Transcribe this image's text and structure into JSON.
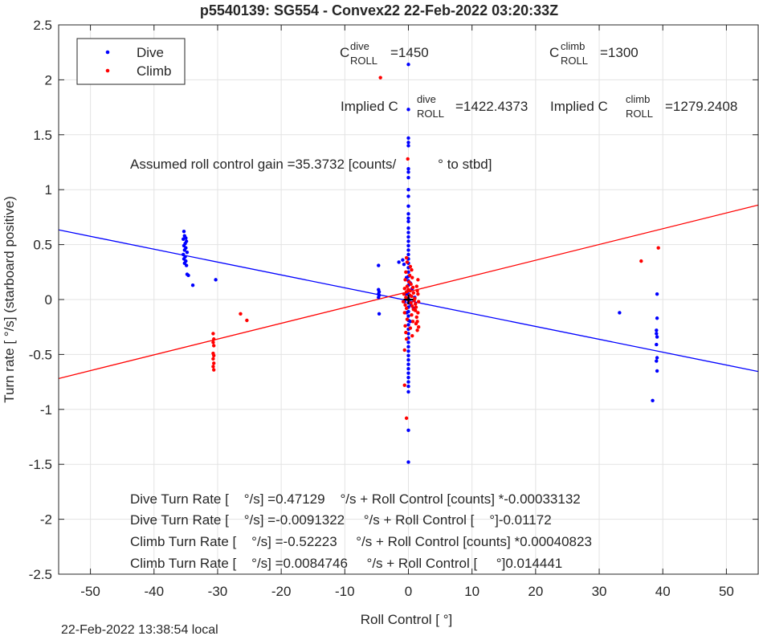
{
  "chart_data": {
    "type": "scatter",
    "title": "p5540139: SG554 - Convex22 22-Feb-2022 03:20:33Z",
    "xlabel": "Roll Control [   °]",
    "ylabel": "Turn rate [   °/s] (starboard positive)",
    "xlim": [
      -55,
      55
    ],
    "ylim": [
      -2.5,
      2.5
    ],
    "xticks": [
      -50,
      -40,
      -30,
      -20,
      -10,
      0,
      10,
      20,
      30,
      40,
      50
    ],
    "yticks": [
      -2.5,
      -2,
      -1.5,
      -1,
      -0.5,
      0,
      0.5,
      1,
      1.5,
      2,
      2.5
    ],
    "grid": true,
    "legend_position": "top-left",
    "timestamp": "22-Feb-2022 13:38:54 local",
    "colors": {
      "dive": "#0000ff",
      "climb": "#ff0000",
      "zero": "#000000"
    },
    "legend": [
      {
        "label": "Dive",
        "color": "#0000ff"
      },
      {
        "label": "Climb",
        "color": "#ff0000"
      }
    ],
    "annotations": {
      "c_dive": {
        "prefix": "C",
        "sup": "dive",
        "sub": "ROLL",
        "value": "=1450"
      },
      "c_climb": {
        "prefix": "C",
        "sup": "climb",
        "sub": "ROLL",
        "value": "=1300"
      },
      "implied_dive": {
        "prefix": "Implied C",
        "sup": "dive",
        "sub": "ROLL",
        "value": "=1422.4373"
      },
      "implied_climb": {
        "prefix": "Implied C",
        "sup": "climb",
        "sub": "ROLL",
        "value": "=1279.2408"
      },
      "gain": "Assumed roll control gain =35.3732 [counts/           ° to stbd]",
      "eq1": "Dive Turn Rate [    °/s] =0.47129    °/s + Roll Control [counts] *-0.00033132",
      "eq2": "Dive Turn Rate [    °/s] =-0.0091322     °/s + Roll Control [    °]-0.01172",
      "eq3": "Climb Turn Rate [    °/s] =-0.52223     °/s + Roll Control [counts] *0.00040823",
      "eq4": "Climb Turn Rate [    °/s] =0.0084746     °/s + Roll Control [     °]0.014441"
    },
    "fit_lines": [
      {
        "name": "dive-fit",
        "color": "#0000ff",
        "points": [
          [
            -55,
            0.634
          ],
          [
            55,
            -0.655
          ]
        ]
      },
      {
        "name": "climb-fit",
        "color": "#ff0000",
        "points": [
          [
            -55,
            -0.719
          ],
          [
            55,
            0.86
          ]
        ]
      }
    ],
    "series": [
      {
        "name": "Dive",
        "color": "#0000ff",
        "points": [
          [
            -35.3,
            0.62
          ],
          [
            -35.2,
            0.58
          ],
          [
            -35.0,
            0.56
          ],
          [
            -35.4,
            0.55
          ],
          [
            -34.9,
            0.53
          ],
          [
            -35.1,
            0.51
          ],
          [
            -35.3,
            0.49
          ],
          [
            -35.0,
            0.47
          ],
          [
            -35.2,
            0.45
          ],
          [
            -34.8,
            0.43
          ],
          [
            -35.4,
            0.41
          ],
          [
            -35.1,
            0.39
          ],
          [
            -35.3,
            0.37
          ],
          [
            -35.0,
            0.35
          ],
          [
            -35.2,
            0.33
          ],
          [
            -34.9,
            0.31
          ],
          [
            -34.8,
            0.23
          ],
          [
            -34.6,
            0.22
          ],
          [
            -33.9,
            0.13
          ],
          [
            -30.3,
            0.18
          ],
          [
            -4.7,
            0.31
          ],
          [
            -4.7,
            0.09
          ],
          [
            -4.6,
            0.07
          ],
          [
            -4.7,
            0.05
          ],
          [
            -4.6,
            0.04
          ],
          [
            -4.7,
            0.02
          ],
          [
            -4.6,
            -0.13
          ],
          [
            -1.5,
            0.34
          ],
          [
            -0.9,
            0.36
          ],
          [
            -0.7,
            0.32
          ],
          [
            0.0,
            2.14
          ],
          [
            0.0,
            1.73
          ],
          [
            0.0,
            1.47
          ],
          [
            0.0,
            1.43
          ],
          [
            0.0,
            1.4
          ],
          [
            0.0,
            1.19
          ],
          [
            0.0,
            1.16
          ],
          [
            0.0,
            1.11
          ],
          [
            0.0,
            1.0
          ],
          [
            0.0,
            0.94
          ],
          [
            0.0,
            0.85
          ],
          [
            0.0,
            0.78
          ],
          [
            0.0,
            0.74
          ],
          [
            0.0,
            0.71
          ],
          [
            0.0,
            0.65
          ],
          [
            0.0,
            0.61
          ],
          [
            0.0,
            0.57
          ],
          [
            0.0,
            0.53
          ],
          [
            0.0,
            0.49
          ],
          [
            0.0,
            0.45
          ],
          [
            0.0,
            0.41
          ],
          [
            0.0,
            0.37
          ],
          [
            0.0,
            0.33
          ],
          [
            0.0,
            0.29
          ],
          [
            0.0,
            0.25
          ],
          [
            0.0,
            0.21
          ],
          [
            0.0,
            0.17
          ],
          [
            0.0,
            0.13
          ],
          [
            0.0,
            0.09
          ],
          [
            0.0,
            0.05
          ],
          [
            0.0,
            0.01
          ],
          [
            0.0,
            -0.03
          ],
          [
            0.0,
            -0.07
          ],
          [
            0.0,
            -0.11
          ],
          [
            0.0,
            -0.15
          ],
          [
            0.0,
            -0.19
          ],
          [
            0.0,
            -0.23
          ],
          [
            0.0,
            -0.27
          ],
          [
            0.0,
            -0.31
          ],
          [
            0.0,
            -0.35
          ],
          [
            0.0,
            -0.39
          ],
          [
            0.0,
            -0.43
          ],
          [
            0.0,
            -0.47
          ],
          [
            0.0,
            -0.51
          ],
          [
            0.0,
            -0.55
          ],
          [
            0.0,
            -0.59
          ],
          [
            0.0,
            -0.63
          ],
          [
            0.0,
            -0.67
          ],
          [
            0.0,
            -0.71
          ],
          [
            0.0,
            -0.75
          ],
          [
            0.0,
            -0.79
          ],
          [
            0.0,
            -0.84
          ],
          [
            0.0,
            -1.19
          ],
          [
            0.0,
            -1.48
          ],
          [
            -0.3,
            0.2
          ],
          [
            0.3,
            0.15
          ],
          [
            -0.4,
            0.05
          ],
          [
            0.4,
            -0.05
          ],
          [
            -0.3,
            -0.12
          ],
          [
            0.3,
            -0.2
          ],
          [
            0.6,
            0.1
          ],
          [
            -0.6,
            -0.02
          ],
          [
            0.8,
            -0.08
          ],
          [
            1.0,
            0.02
          ],
          [
            33.2,
            -0.12
          ],
          [
            38.4,
            -0.92
          ],
          [
            39.1,
            0.05
          ],
          [
            39.1,
            -0.17
          ],
          [
            39.0,
            -0.28
          ],
          [
            39.0,
            -0.31
          ],
          [
            39.1,
            -0.34
          ],
          [
            39.0,
            -0.41
          ],
          [
            39.1,
            -0.53
          ],
          [
            39.0,
            -0.56
          ],
          [
            39.1,
            -0.65
          ]
        ]
      },
      {
        "name": "Climb",
        "color": "#ff0000",
        "points": [
          [
            -4.4,
            2.02
          ],
          [
            -0.1,
            1.28
          ],
          [
            -0.3,
            -1.08
          ],
          [
            -0.6,
            -0.46
          ],
          [
            -0.6,
            -0.78
          ],
          [
            -30.7,
            -0.31
          ],
          [
            -30.6,
            -0.36
          ],
          [
            -30.7,
            -0.39
          ],
          [
            -30.6,
            -0.42
          ],
          [
            -30.7,
            -0.49
          ],
          [
            -30.6,
            -0.51
          ],
          [
            -30.7,
            -0.54
          ],
          [
            -30.6,
            -0.58
          ],
          [
            -30.7,
            -0.61
          ],
          [
            -30.6,
            -0.64
          ],
          [
            -26.4,
            -0.13
          ],
          [
            -25.4,
            -0.19
          ],
          [
            36.6,
            0.35
          ],
          [
            39.3,
            0.47
          ],
          [
            -0.3,
            0.38
          ],
          [
            -0.2,
            0.34
          ],
          [
            0.3,
            0.3
          ],
          [
            0.5,
            0.27
          ],
          [
            -0.4,
            0.25
          ],
          [
            0.2,
            0.22
          ],
          [
            0.6,
            0.2
          ],
          [
            -0.5,
            0.18
          ],
          [
            0.1,
            0.16
          ],
          [
            0.4,
            0.14
          ],
          [
            -0.2,
            0.12
          ],
          [
            0.7,
            0.11
          ],
          [
            -0.6,
            0.1
          ],
          [
            0.0,
            0.09
          ],
          [
            0.3,
            0.08
          ],
          [
            -0.3,
            0.07
          ],
          [
            0.8,
            0.06
          ],
          [
            -0.7,
            0.05
          ],
          [
            0.2,
            0.04
          ],
          [
            0.5,
            0.03
          ],
          [
            -0.4,
            0.02
          ],
          [
            1.0,
            0.01
          ],
          [
            -0.1,
            0.0
          ],
          [
            0.9,
            -0.01
          ],
          [
            -0.8,
            -0.02
          ],
          [
            0.4,
            -0.03
          ],
          [
            1.1,
            -0.04
          ],
          [
            -0.5,
            -0.05
          ],
          [
            0.6,
            -0.06
          ],
          [
            1.2,
            -0.07
          ],
          [
            -0.3,
            -0.08
          ],
          [
            0.8,
            -0.09
          ],
          [
            1.1,
            -0.1
          ],
          [
            -0.6,
            -0.12
          ],
          [
            0.5,
            -0.14
          ],
          [
            1.3,
            -0.16
          ],
          [
            -0.2,
            -0.18
          ],
          [
            0.7,
            -0.2
          ],
          [
            1.2,
            -0.22
          ],
          [
            -0.5,
            -0.24
          ],
          [
            0.3,
            -0.26
          ],
          [
            1.4,
            -0.28
          ],
          [
            -0.4,
            -0.3
          ],
          [
            0.6,
            -0.33
          ],
          [
            -0.3,
            -0.36
          ],
          [
            1.5,
            0.18
          ],
          [
            1.4,
            0.08
          ],
          [
            1.6,
            -0.02
          ],
          [
            1.5,
            -0.12
          ],
          [
            1.4,
            -0.2
          ],
          [
            1.6,
            -0.25
          ],
          [
            1.5,
            0.05
          ],
          [
            1.3,
            0.12
          ]
        ]
      }
    ]
  }
}
